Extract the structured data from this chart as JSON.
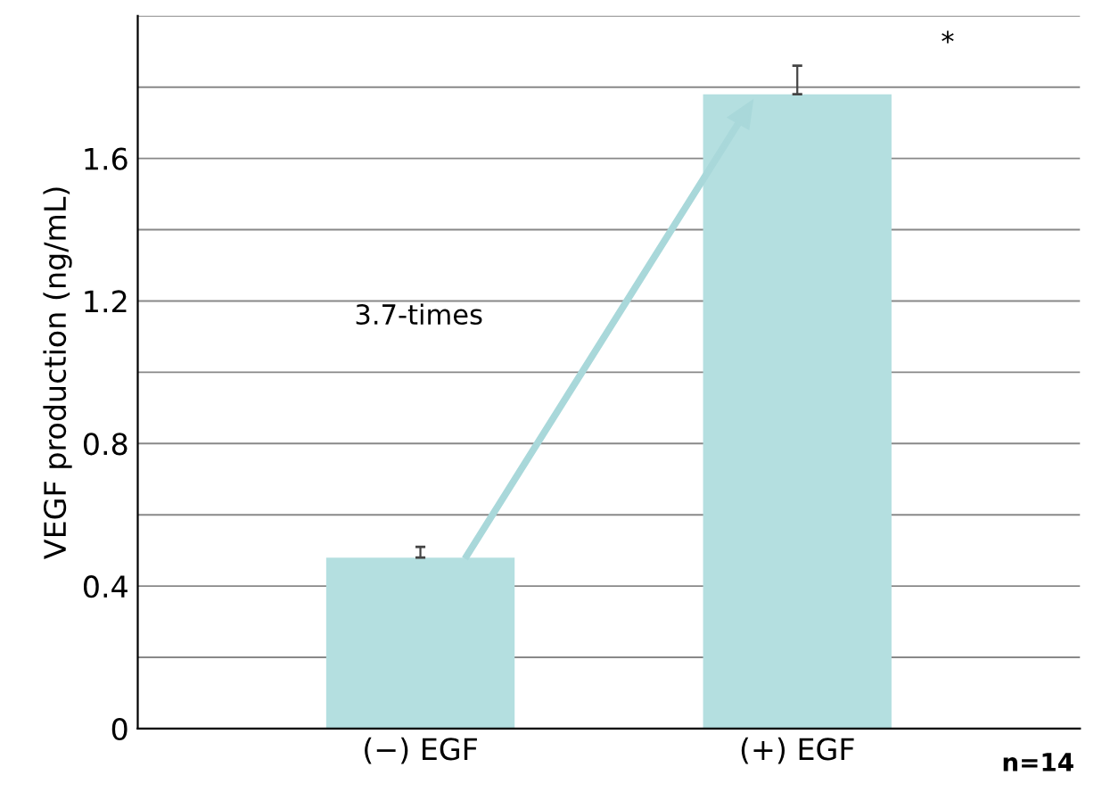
{
  "chart_data": {
    "type": "bar",
    "ylabel": "VEGF production (ng/mL)",
    "categories": [
      "(−) EGF",
      "(+) EGF"
    ],
    "values": [
      0.48,
      1.78
    ],
    "errors": [
      [
        0.48,
        0.51
      ],
      [
        1.78,
        1.86
      ]
    ],
    "color": "#b4dfe0",
    "ylim": [
      0,
      2.0
    ],
    "yticks": [
      0,
      {
        "value": 0.2,
        "label": null
      },
      0.4,
      {
        "value": 0.6,
        "label": null
      },
      0.8,
      {
        "value": 1.0,
        "label": null
      },
      1.2,
      {
        "value": 1.4,
        "label": null
      },
      1.6,
      {
        "value": 1.8,
        "label": null
      },
      {
        "value": 2.0,
        "label": null
      }
    ],
    "grid": "y",
    "annotations": [
      "3.7-times",
      "*",
      "n=14"
    ]
  }
}
